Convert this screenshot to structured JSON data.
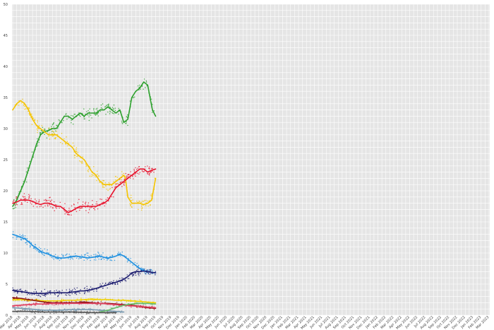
{
  "chart_data": {
    "type": "scatter",
    "title": "",
    "xlabel": "",
    "ylabel": "",
    "ylim": [
      0,
      50
    ],
    "y_ticks": [
      0,
      5,
      10,
      15,
      20,
      25,
      30,
      35,
      40,
      45,
      50
    ],
    "grid": true,
    "legend": "none",
    "x_tick_labels": [
      "Mar 2018",
      "Apr 2018",
      "May 2018",
      "Jun 2018",
      "Jul 2018",
      "Aug 2018",
      "Sep 2018",
      "Oct 2018",
      "Nov 2018",
      "Dec 2018",
      "Jan 2019",
      "Feb 2019",
      "Mar 2019",
      "Apr 2019",
      "May 2019",
      "Jun 2019",
      "Jul 2019",
      "Aug 2019",
      "Sep 2019",
      "Oct 2019",
      "Nov 2019",
      "Dec 2019",
      "Jan 2020",
      "Feb 2020",
      "Mar 2020",
      "Apr 2020",
      "May 2020",
      "Jun 2020",
      "Jul 2020",
      "Aug 2020",
      "Sep 2020",
      "Oct 2020",
      "Nov 2020",
      "Dec 2020",
      "Jan 2021",
      "Feb 2021",
      "Mar 2021",
      "Apr 2021",
      "May 2021",
      "Jun 2021",
      "Jul 2021",
      "Aug 2021",
      "Sep 2021",
      "Oct 2021",
      "Nov 2021",
      "Dec 2021",
      "Jan 2022",
      "Feb 2022",
      "Mar 2022",
      "Apr 2022",
      "May 2022",
      "Jun 2022",
      "Jul 2022",
      "Aug 2022",
      "Sep 2022",
      "Oct 2022",
      "Nov 2022",
      "Dec 2022",
      "Jan 2023",
      "Feb 2023",
      "Mar 2023"
    ],
    "series": [
      {
        "color": "#2ca02c",
        "x": [
          0,
          0.5,
          1,
          1.5,
          2,
          2.5,
          3,
          3.5,
          4,
          4.5,
          5,
          5.5,
          6,
          6.5,
          7,
          7.5,
          8,
          8.5,
          9,
          9.5,
          10,
          10.5,
          11,
          11.5,
          12,
          12.5,
          13,
          13.5,
          14,
          14.5,
          15,
          15.5,
          16,
          16.5,
          17,
          17.3,
          17.6,
          18
        ],
        "y": [
          17.5,
          18.5,
          20,
          21.5,
          23.5,
          25.5,
          27.5,
          29,
          29.5,
          29.7,
          30,
          30,
          31,
          32,
          32,
          31.5,
          32,
          32.5,
          32,
          32.5,
          32.5,
          32.5,
          33,
          33,
          33.5,
          33,
          32.5,
          33,
          31,
          31.5,
          35,
          36,
          36.5,
          37.5,
          37,
          35,
          33,
          32
        ]
      },
      {
        "color": "#f5c400",
        "x": [
          0,
          0.5,
          1,
          1.5,
          2,
          2.5,
          3,
          3.5,
          4,
          4.5,
          5,
          5.5,
          6,
          6.5,
          7,
          7.5,
          8,
          8.5,
          9,
          9.5,
          10,
          10.5,
          11,
          11.5,
          12,
          12.5,
          13,
          13.5,
          14,
          14.2,
          14.5,
          15,
          15.5,
          16,
          16.5,
          17,
          17.5,
          18
        ],
        "y": [
          33,
          34,
          34.5,
          34,
          33,
          31.5,
          30.5,
          30,
          29.5,
          29,
          29,
          29,
          28.5,
          28,
          27.5,
          27,
          26,
          25.5,
          25,
          24,
          23,
          22.5,
          21.5,
          21,
          21,
          21,
          21.5,
          22,
          22.5,
          22,
          19,
          18,
          18,
          18,
          17.8,
          18,
          18.5,
          22
        ]
      },
      {
        "color": "#e8102a",
        "x": [
          0,
          0.5,
          1,
          1.5,
          2,
          2.5,
          3,
          3.5,
          4,
          4.5,
          5,
          5.5,
          6,
          6.5,
          7,
          7.5,
          8,
          8.5,
          9,
          9.5,
          10,
          10.5,
          11,
          11.5,
          12,
          12.5,
          13,
          13.5,
          14,
          14.5,
          15,
          15.5,
          16,
          16.5,
          17,
          17.5,
          18
        ],
        "y": [
          18,
          18.2,
          18.5,
          18.5,
          18.5,
          18.3,
          18,
          17.8,
          18,
          18,
          17.8,
          17.5,
          17.5,
          17,
          16.5,
          16.8,
          17.2,
          17.5,
          17.5,
          17.5,
          17.5,
          17.5,
          17.8,
          18,
          18.5,
          19.5,
          20.5,
          21,
          21.5,
          22,
          22.5,
          23,
          23.5,
          23.5,
          23,
          23.3,
          23.5
        ]
      },
      {
        "color": "#1e90e0",
        "x": [
          0,
          0.5,
          1,
          1.5,
          2,
          2.5,
          3,
          3.5,
          4,
          4.5,
          5,
          5.5,
          6,
          6.5,
          7,
          7.5,
          8,
          8.5,
          9,
          9.5,
          10,
          10.5,
          11,
          11.5,
          12,
          12.5,
          13,
          13.5,
          14,
          14.5,
          15,
          15.5,
          16,
          16.5,
          17,
          17.5,
          18
        ],
        "y": [
          13,
          12.8,
          12.5,
          12.3,
          11.8,
          11.2,
          10.8,
          10.3,
          10,
          9.8,
          9.5,
          9.3,
          9.2,
          9.2,
          9.3,
          9.4,
          9.5,
          9.4,
          9.3,
          9.2,
          9.3,
          9.4,
          9.5,
          9.3,
          9.2,
          9.3,
          9.5,
          9.8,
          9.5,
          9,
          8.5,
          8,
          7.5,
          7.2,
          7,
          6.9,
          6.8
        ]
      },
      {
        "color": "#1a1a6e",
        "x": [
          0,
          0.5,
          1,
          1.5,
          2,
          2.5,
          3,
          3.5,
          4,
          4.5,
          5,
          5.5,
          6,
          6.5,
          7,
          7.5,
          8,
          8.5,
          9,
          9.5,
          10,
          10.5,
          11,
          11.5,
          12,
          12.5,
          13,
          13.5,
          14,
          14.5,
          15,
          15.5,
          16,
          16.5,
          17,
          17.5,
          18
        ],
        "y": [
          4,
          3.9,
          3.8,
          3.7,
          3.6,
          3.5,
          3.5,
          3.5,
          3.5,
          3.6,
          3.6,
          3.6,
          3.6,
          3.6,
          3.6,
          3.7,
          3.8,
          3.9,
          3.9,
          4,
          4.1,
          4.3,
          4.5,
          4.7,
          4.9,
          5.1,
          5.3,
          5.5,
          5.8,
          6.2,
          6.8,
          7,
          7,
          7.1,
          7,
          6.9,
          6.8
        ]
      },
      {
        "color": "#f0d000",
        "x": [
          0,
          1,
          2,
          3,
          4,
          5,
          6,
          7,
          8,
          9,
          10,
          11,
          12,
          13,
          14,
          15,
          16,
          17,
          18
        ],
        "y": [
          2.5,
          2.5,
          2.4,
          2.4,
          2.3,
          2.3,
          2.3,
          2.4,
          2.4,
          2.5,
          2.6,
          2.5,
          2.5,
          2.4,
          2.4,
          2.3,
          2.2,
          2.1,
          2
        ]
      },
      {
        "color": "#8b1010",
        "x": [
          0,
          1,
          2,
          3,
          4,
          5,
          6,
          7,
          8,
          9,
          10,
          11,
          12,
          13,
          14,
          15,
          16,
          17,
          18
        ],
        "y": [
          2.8,
          2.7,
          2.5,
          2.3,
          2.1,
          2,
          2,
          2,
          2,
          2.1,
          2,
          1.9,
          1.9,
          1.8,
          1.7,
          1.6,
          1.4,
          1.2,
          1.1
        ]
      },
      {
        "color": "#e04060",
        "x": [
          0,
          1,
          2,
          3,
          4,
          5,
          6,
          7,
          8,
          9,
          10,
          11,
          12,
          13,
          14,
          15,
          16,
          17,
          18
        ],
        "y": [
          1.5,
          1.6,
          1.7,
          1.8,
          1.8,
          1.9,
          1.9,
          1.9,
          1.9,
          1.9,
          1.9,
          1.9,
          1.8,
          1.7,
          1.6,
          1.5,
          1.4,
          1.3,
          1.2
        ]
      },
      {
        "color": "#7a9ab0",
        "x": [
          0,
          1,
          2,
          3,
          4,
          5,
          6,
          7,
          8,
          9,
          10,
          11,
          12,
          13,
          14
        ],
        "y": [
          1.2,
          1.1,
          1,
          0.9,
          0.8,
          0.8,
          0.8,
          0.9,
          0.9,
          0.9,
          0.9,
          0.8,
          0.7,
          0.6,
          0.5
        ]
      },
      {
        "color": "#66bb6a",
        "x": [
          11,
          12,
          13,
          14,
          15,
          16,
          17,
          18
        ],
        "y": [
          0.5,
          0.8,
          1.2,
          1.6,
          1.8,
          1.9,
          1.9,
          1.8
        ]
      },
      {
        "color": "#555555",
        "x": [
          0,
          2,
          4,
          6,
          8,
          10,
          12,
          13
        ],
        "y": [
          0.6,
          0.6,
          0.5,
          0.5,
          0.5,
          0.4,
          0.4,
          0.4
        ]
      }
    ]
  }
}
